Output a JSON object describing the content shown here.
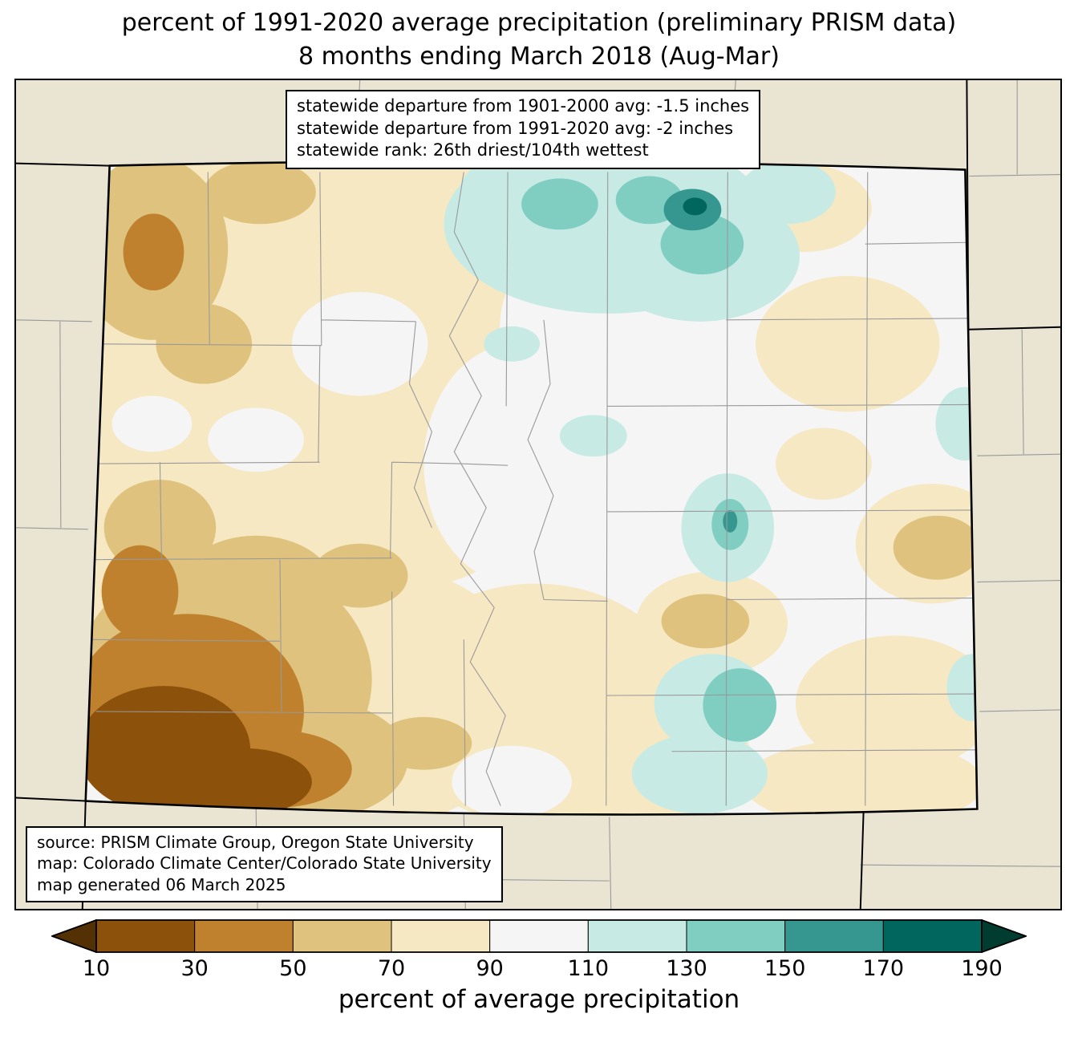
{
  "title": {
    "line1": "percent of 1991-2020 average precipitation (preliminary PRISM data)",
    "line2": "8 months ending March 2018 (Aug-Mar)"
  },
  "stats_box": {
    "lines": [
      "statewide departure from 1901-2000 avg: -1.5 inches",
      "statewide departure from 1991-2020 avg: -2 inches",
      "statewide rank: 26th driest/104th wettest"
    ]
  },
  "source_box": {
    "lines": [
      "source: PRISM Climate Group, Oregon State University",
      "map: Colorado Climate Center/Colorado State University",
      "map generated 06 March 2025"
    ]
  },
  "colorbar": {
    "label": "percent of average precipitation",
    "ticks": [
      "10",
      "30",
      "50",
      "70",
      "90",
      "110",
      "130",
      "150",
      "170",
      "190"
    ],
    "under_color": "#543005",
    "over_color": "#003c30",
    "segment_colors": [
      "#8c510a",
      "#bf812d",
      "#dfc27d",
      "#f6e8c3",
      "#f5f5f5",
      "#c7eae5",
      "#80cdc1",
      "#35978f",
      "#01665e"
    ]
  },
  "map": {
    "background_color": "#e9e5d2",
    "county_line_color": "#999999",
    "state_border_color": "#000000",
    "near_normal_color": "#f5f4ef"
  }
}
